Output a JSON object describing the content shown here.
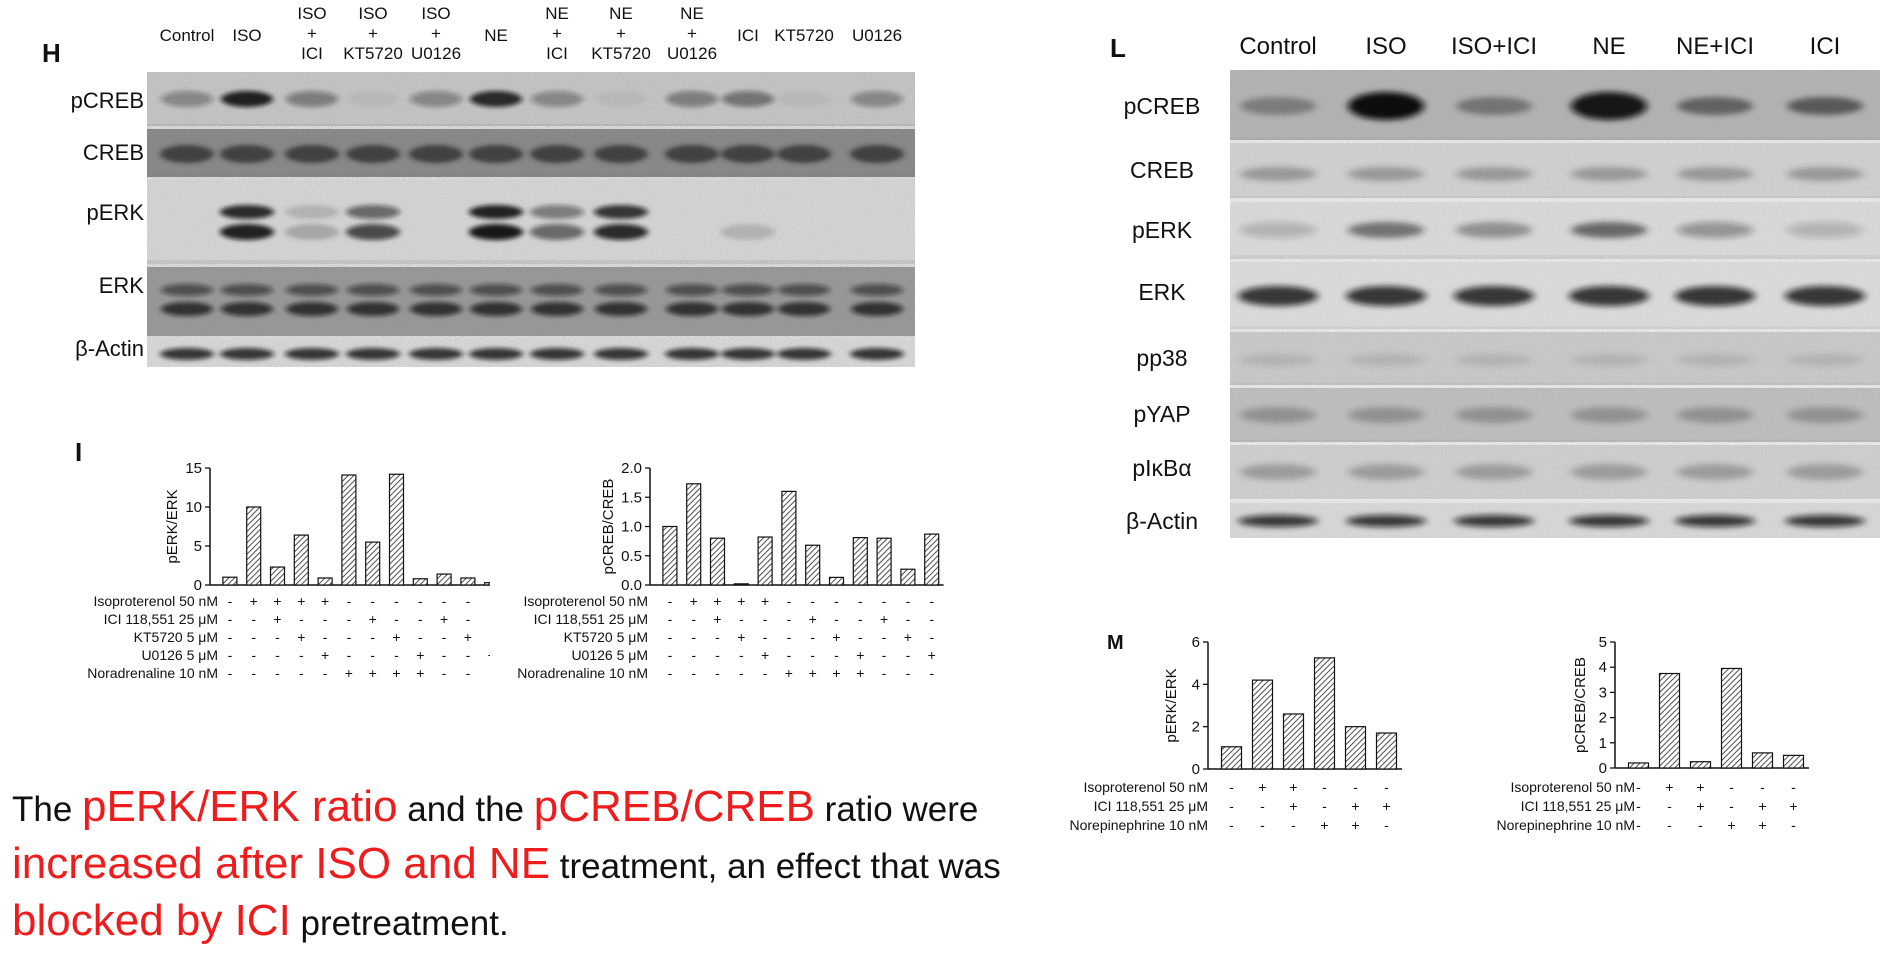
{
  "panel_H": {
    "letter": "H",
    "lanes": [
      "Control",
      "ISO",
      "ISO\n+\nICI",
      "ISO\n+\nKT5720",
      "ISO\n+\nU0126",
      "NE",
      "NE\n+\nICI",
      "NE\n+\nKT5720",
      "NE\n+\nU0126",
      "ICI",
      "KT5720",
      "U0126"
    ],
    "rows": [
      "pCREB",
      "CREB",
      "pERK",
      "ERK",
      "β-Actin"
    ]
  },
  "panel_L": {
    "letter": "L",
    "lanes": [
      "Control",
      "ISO",
      "ISO+ICI",
      "NE",
      "NE+ICI",
      "ICI"
    ],
    "rows": [
      "pCREB",
      "CREB",
      "pERK",
      "ERK",
      "pp38",
      "pYAP",
      "pIκBα",
      "β-Actin"
    ]
  },
  "panel_I_letter": "I",
  "panel_M_letter": "M",
  "chart_data": [
    {
      "type": "bar",
      "ylabel": "pERK/ERK",
      "ylim": [
        0,
        15
      ],
      "yticks": [
        0,
        5,
        10,
        15
      ],
      "values": [
        1.0,
        10.0,
        2.3,
        6.4,
        0.9,
        14.1,
        5.5,
        14.2,
        0.8,
        1.4,
        0.9,
        0.3
      ],
      "treatment_rows": [
        {
          "label": "Isoproterenol 50 nM",
          "signs": [
            "-",
            "+",
            "+",
            "+",
            "+",
            "-",
            "-",
            "-",
            "-",
            "-",
            "-",
            "-"
          ]
        },
        {
          "label": "ICI 118,551 25 μM",
          "signs": [
            "-",
            "-",
            "+",
            "-",
            "-",
            "-",
            "+",
            "-",
            "-",
            "+",
            "-",
            "-"
          ]
        },
        {
          "label": "KT5720 5 μM",
          "signs": [
            "-",
            "-",
            "-",
            "+",
            "-",
            "-",
            "-",
            "+",
            "-",
            "-",
            "+",
            "-"
          ]
        },
        {
          "label": "U0126 5 μM",
          "signs": [
            "-",
            "-",
            "-",
            "-",
            "+",
            "-",
            "-",
            "-",
            "+",
            "-",
            "-",
            "+"
          ]
        },
        {
          "label": "Noradrenaline 10 nM",
          "signs": [
            "-",
            "-",
            "-",
            "-",
            "-",
            "+",
            "+",
            "+",
            "+",
            "-",
            "-",
            "-"
          ]
        }
      ]
    },
    {
      "type": "bar",
      "ylabel": "pCREB/CREB",
      "ylim": [
        0,
        2.0
      ],
      "yticks": [
        "0.0",
        "0.5",
        "1.0",
        "1.5",
        "2.0"
      ],
      "values": [
        1.0,
        1.73,
        0.8,
        0.02,
        0.82,
        1.6,
        0.68,
        0.13,
        0.81,
        0.8,
        0.27,
        0.87
      ],
      "treatment_rows": [
        {
          "label": "Isoproterenol 50 nM",
          "signs": [
            "-",
            "+",
            "+",
            "+",
            "+",
            "-",
            "-",
            "-",
            "-",
            "-",
            "-",
            "-"
          ]
        },
        {
          "label": "ICI 118,551 25 μM",
          "signs": [
            "-",
            "-",
            "+",
            "-",
            "-",
            "-",
            "+",
            "-",
            "-",
            "+",
            "-",
            "-"
          ]
        },
        {
          "label": "KT5720 5 μM",
          "signs": [
            "-",
            "-",
            "-",
            "+",
            "-",
            "-",
            "-",
            "+",
            "-",
            "-",
            "+",
            "-"
          ]
        },
        {
          "label": "U0126 5 μM",
          "signs": [
            "-",
            "-",
            "-",
            "-",
            "+",
            "-",
            "-",
            "-",
            "+",
            "-",
            "-",
            "+"
          ]
        },
        {
          "label": "Noradrenaline 10 nM",
          "signs": [
            "-",
            "-",
            "-",
            "-",
            "-",
            "+",
            "+",
            "+",
            "+",
            "-",
            "-",
            "-"
          ]
        }
      ]
    },
    {
      "type": "bar",
      "ylabel": "pERK/ERK",
      "ylim": [
        0,
        6
      ],
      "yticks": [
        0,
        2,
        4,
        6
      ],
      "values": [
        1.05,
        4.2,
        2.6,
        5.25,
        2.0,
        1.7
      ],
      "treatment_rows": [
        {
          "label": "Isoproterenol 50 nM",
          "signs": [
            "-",
            "+",
            "+",
            "-",
            "-",
            "-"
          ]
        },
        {
          "label": "ICI 118,551 25 μM",
          "signs": [
            "-",
            "-",
            "+",
            "-",
            "+",
            "+"
          ]
        },
        {
          "label": "Norepinephrine 10 nM",
          "signs": [
            "-",
            "-",
            "-",
            "+",
            "+",
            "-"
          ]
        }
      ]
    },
    {
      "type": "bar",
      "ylabel": "pCREB/CREB",
      "ylim": [
        0,
        5
      ],
      "yticks": [
        0,
        1,
        2,
        3,
        4,
        5
      ],
      "values": [
        0.2,
        3.75,
        0.25,
        3.95,
        0.6,
        0.5
      ],
      "treatment_rows": [
        {
          "label": "Isoproterenol 50 nM",
          "signs": [
            "-",
            "+",
            "+",
            "-",
            "-",
            "-"
          ]
        },
        {
          "label": "ICI 118,551 25 μM",
          "signs": [
            "-",
            "-",
            "+",
            "-",
            "+",
            "+"
          ]
        },
        {
          "label": "Norepinephrine 10 nM",
          "signs": [
            "-",
            "-",
            "-",
            "+",
            "+",
            "-"
          ]
        }
      ]
    }
  ],
  "caption": {
    "t1": "The ",
    "h1": "pERK/ERK ratio",
    "t2": " and the ",
    "h2": "pCREB/CREB",
    "t3": " ratio were ",
    "h3": "increased after ISO and NE",
    "t4": " treatment, an effect that was ",
    "h4": "blocked by ICI",
    "t5": " pretreatment."
  },
  "colors": {
    "highlight": "#ee1c1c",
    "text": "#111111"
  }
}
